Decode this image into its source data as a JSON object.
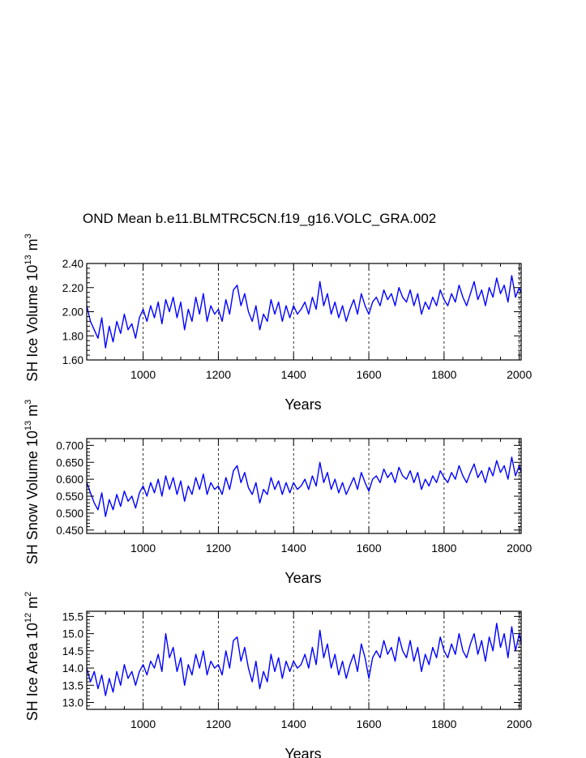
{
  "title": "OND Mean b.e11.BLMTRC5CN.f19_g16.VOLC_GRA.002",
  "chart_data": [
    {
      "type": "line",
      "xlabel": "Years",
      "ylabel_main": "SH Ice Volume 10",
      "ylabel_exp": "13",
      "ylabel_unit": "m",
      "ylabel_unit_exp": "3",
      "xlim": [
        850,
        2005
      ],
      "ylim": [
        1.6,
        2.4
      ],
      "xticks": [
        1000,
        1200,
        1400,
        1600,
        1800,
        2000
      ],
      "xtick_labels": [
        "1000",
        "1200",
        "1400",
        "1600",
        "1800",
        "2000"
      ],
      "yticks": [
        1.6,
        1.8,
        2.0,
        2.2,
        2.4
      ],
      "ytick_labels": [
        "1.60",
        "1.80",
        "2.00",
        "2.20",
        "2.40"
      ],
      "vgrid": true,
      "series": [
        {
          "color": "#0000ff",
          "x": [
            850,
            860,
            870,
            880,
            890,
            900,
            910,
            920,
            930,
            940,
            950,
            960,
            970,
            980,
            990,
            1000,
            1010,
            1020,
            1030,
            1040,
            1050,
            1060,
            1070,
            1080,
            1090,
            1100,
            1110,
            1120,
            1130,
            1140,
            1150,
            1160,
            1170,
            1180,
            1190,
            1200,
            1210,
            1220,
            1230,
            1240,
            1250,
            1260,
            1270,
            1280,
            1290,
            1300,
            1310,
            1320,
            1330,
            1340,
            1350,
            1360,
            1370,
            1380,
            1390,
            1400,
            1410,
            1420,
            1430,
            1440,
            1450,
            1460,
            1470,
            1480,
            1490,
            1500,
            1510,
            1520,
            1530,
            1540,
            1550,
            1560,
            1570,
            1580,
            1590,
            1600,
            1610,
            1620,
            1630,
            1640,
            1650,
            1660,
            1670,
            1680,
            1690,
            1700,
            1710,
            1720,
            1730,
            1740,
            1750,
            1760,
            1770,
            1780,
            1790,
            1800,
            1810,
            1820,
            1830,
            1840,
            1850,
            1860,
            1870,
            1880,
            1890,
            1900,
            1910,
            1920,
            1930,
            1940,
            1950,
            1960,
            1970,
            1980,
            1990,
            2000,
            2005
          ],
          "y": [
            2.05,
            1.92,
            1.85,
            1.78,
            1.95,
            1.7,
            1.88,
            1.75,
            1.92,
            1.82,
            1.98,
            1.85,
            1.9,
            1.78,
            1.95,
            2.02,
            1.92,
            2.05,
            1.95,
            2.08,
            1.9,
            2.1,
            2.0,
            2.12,
            1.95,
            2.08,
            1.85,
            2.02,
            1.92,
            2.12,
            1.98,
            2.15,
            1.92,
            2.05,
            1.98,
            2.02,
            1.92,
            2.1,
            1.98,
            2.18,
            2.22,
            2.05,
            2.15,
            2.0,
            1.92,
            2.05,
            1.85,
            1.98,
            1.92,
            2.1,
            1.98,
            2.08,
            1.92,
            2.05,
            1.95,
            2.05,
            1.98,
            2.02,
            2.08,
            1.98,
            2.12,
            2.02,
            2.25,
            2.05,
            2.15,
            1.98,
            2.08,
            1.95,
            2.05,
            1.92,
            2.02,
            2.1,
            1.98,
            2.15,
            2.05,
            1.98,
            2.08,
            2.12,
            2.05,
            2.18,
            2.1,
            2.15,
            2.05,
            2.2,
            2.12,
            2.08,
            2.18,
            2.05,
            2.15,
            1.98,
            2.08,
            2.02,
            2.12,
            2.05,
            2.18,
            2.1,
            2.05,
            2.15,
            2.08,
            2.22,
            2.12,
            2.05,
            2.15,
            2.25,
            2.1,
            2.18,
            2.05,
            2.2,
            2.12,
            2.28,
            2.15,
            2.22,
            2.08,
            2.3,
            2.12,
            2.2,
            2.15
          ]
        }
      ]
    },
    {
      "type": "line",
      "xlabel": "Years",
      "ylabel_main": "SH Snow Volume 10",
      "ylabel_exp": "13",
      "ylabel_unit": "m",
      "ylabel_unit_exp": "3",
      "xlim": [
        850,
        2005
      ],
      "ylim": [
        0.44,
        0.72
      ],
      "xticks": [
        1000,
        1200,
        1400,
        1600,
        1800,
        2000
      ],
      "xtick_labels": [
        "1000",
        "1200",
        "1400",
        "1600",
        "1800",
        "2000"
      ],
      "yticks": [
        0.45,
        0.5,
        0.55,
        0.6,
        0.65,
        0.7
      ],
      "ytick_labels": [
        "0.450",
        "0.500",
        "0.550",
        "0.600",
        "0.650",
        "0.700"
      ],
      "vgrid": true,
      "series": [
        {
          "color": "#0000ff",
          "x": [
            850,
            860,
            870,
            880,
            890,
            900,
            910,
            920,
            930,
            940,
            950,
            960,
            970,
            980,
            990,
            1000,
            1010,
            1020,
            1030,
            1040,
            1050,
            1060,
            1070,
            1080,
            1090,
            1100,
            1110,
            1120,
            1130,
            1140,
            1150,
            1160,
            1170,
            1180,
            1190,
            1200,
            1210,
            1220,
            1230,
            1240,
            1250,
            1260,
            1270,
            1280,
            1290,
            1300,
            1310,
            1320,
            1330,
            1340,
            1350,
            1360,
            1370,
            1380,
            1390,
            1400,
            1410,
            1420,
            1430,
            1440,
            1450,
            1460,
            1470,
            1480,
            1490,
            1500,
            1510,
            1520,
            1530,
            1540,
            1550,
            1560,
            1570,
            1580,
            1590,
            1600,
            1610,
            1620,
            1630,
            1640,
            1650,
            1660,
            1670,
            1680,
            1690,
            1700,
            1710,
            1720,
            1730,
            1740,
            1750,
            1760,
            1770,
            1780,
            1790,
            1800,
            1810,
            1820,
            1830,
            1840,
            1850,
            1860,
            1870,
            1880,
            1890,
            1900,
            1910,
            1920,
            1930,
            1940,
            1950,
            1960,
            1970,
            1980,
            1990,
            2000,
            2005
          ],
          "y": [
            0.59,
            0.56,
            0.53,
            0.51,
            0.56,
            0.49,
            0.54,
            0.51,
            0.555,
            0.52,
            0.565,
            0.535,
            0.55,
            0.515,
            0.56,
            0.58,
            0.55,
            0.59,
            0.56,
            0.6,
            0.55,
            0.61,
            0.57,
            0.605,
            0.555,
            0.595,
            0.535,
            0.58,
            0.555,
            0.605,
            0.57,
            0.615,
            0.555,
            0.59,
            0.57,
            0.58,
            0.555,
            0.605,
            0.57,
            0.625,
            0.64,
            0.59,
            0.62,
            0.575,
            0.555,
            0.59,
            0.53,
            0.57,
            0.555,
            0.605,
            0.57,
            0.595,
            0.555,
            0.59,
            0.56,
            0.59,
            0.57,
            0.58,
            0.6,
            0.57,
            0.61,
            0.58,
            0.65,
            0.59,
            0.62,
            0.57,
            0.6,
            0.56,
            0.59,
            0.555,
            0.58,
            0.605,
            0.57,
            0.62,
            0.59,
            0.565,
            0.6,
            0.61,
            0.59,
            0.63,
            0.605,
            0.62,
            0.59,
            0.635,
            0.61,
            0.6,
            0.625,
            0.59,
            0.62,
            0.57,
            0.6,
            0.58,
            0.61,
            0.59,
            0.625,
            0.605,
            0.59,
            0.62,
            0.6,
            0.64,
            0.61,
            0.59,
            0.62,
            0.645,
            0.605,
            0.625,
            0.59,
            0.635,
            0.61,
            0.655,
            0.62,
            0.64,
            0.6,
            0.665,
            0.61,
            0.64,
            0.62
          ]
        }
      ]
    },
    {
      "type": "line",
      "xlabel": "Years",
      "ylabel_main": "SH Ice Area 10",
      "ylabel_exp": "12",
      "ylabel_unit": "m",
      "ylabel_unit_exp": "2",
      "xlim": [
        850,
        2005
      ],
      "ylim": [
        12.8,
        15.65
      ],
      "xticks": [
        1000,
        1200,
        1400,
        1600,
        1800,
        2000
      ],
      "xtick_labels": [
        "1000",
        "1200",
        "1400",
        "1600",
        "1800",
        "2000"
      ],
      "yticks": [
        13.0,
        13.5,
        14.0,
        14.5,
        15.0,
        15.5
      ],
      "ytick_labels": [
        "13.0",
        "13.5",
        "14.0",
        "14.5",
        "15.0",
        "15.5"
      ],
      "vgrid": true,
      "series": [
        {
          "color": "#0000ff",
          "x": [
            850,
            860,
            870,
            880,
            890,
            900,
            910,
            920,
            930,
            940,
            950,
            960,
            970,
            980,
            990,
            1000,
            1010,
            1020,
            1030,
            1040,
            1050,
            1060,
            1070,
            1080,
            1090,
            1100,
            1110,
            1120,
            1130,
            1140,
            1150,
            1160,
            1170,
            1180,
            1190,
            1200,
            1210,
            1220,
            1230,
            1240,
            1250,
            1260,
            1270,
            1280,
            1290,
            1300,
            1310,
            1320,
            1330,
            1340,
            1350,
            1360,
            1370,
            1380,
            1390,
            1400,
            1410,
            1420,
            1430,
            1440,
            1450,
            1460,
            1470,
            1480,
            1490,
            1500,
            1510,
            1520,
            1530,
            1540,
            1550,
            1560,
            1570,
            1580,
            1590,
            1600,
            1610,
            1620,
            1630,
            1640,
            1650,
            1660,
            1670,
            1680,
            1690,
            1700,
            1710,
            1720,
            1730,
            1740,
            1750,
            1760,
            1770,
            1780,
            1790,
            1800,
            1810,
            1820,
            1830,
            1840,
            1850,
            1860,
            1870,
            1880,
            1890,
            1900,
            1910,
            1920,
            1930,
            1940,
            1950,
            1960,
            1970,
            1980,
            1990,
            2000,
            2005
          ],
          "y": [
            14.0,
            13.6,
            13.9,
            13.4,
            13.8,
            13.2,
            13.7,
            13.3,
            13.9,
            13.5,
            14.1,
            13.7,
            13.9,
            13.5,
            13.9,
            14.1,
            13.8,
            14.2,
            14.0,
            14.4,
            13.9,
            15.0,
            14.3,
            14.6,
            13.9,
            14.3,
            13.5,
            14.1,
            13.8,
            14.4,
            14.0,
            14.5,
            13.8,
            14.2,
            14.0,
            14.1,
            13.8,
            14.5,
            14.0,
            14.8,
            14.9,
            14.2,
            14.6,
            14.0,
            13.6,
            14.2,
            13.4,
            13.9,
            13.6,
            14.4,
            13.9,
            14.3,
            13.7,
            14.2,
            13.9,
            14.2,
            14.0,
            14.1,
            14.4,
            14.0,
            14.6,
            14.1,
            15.1,
            14.3,
            14.7,
            14.0,
            14.4,
            13.8,
            14.2,
            13.7,
            14.1,
            14.4,
            13.9,
            14.7,
            14.3,
            13.7,
            14.3,
            14.5,
            14.3,
            14.8,
            14.4,
            14.6,
            14.2,
            14.9,
            14.5,
            14.3,
            14.8,
            14.2,
            14.6,
            13.9,
            14.4,
            14.1,
            14.6,
            14.3,
            14.9,
            14.5,
            14.3,
            14.7,
            14.4,
            15.0,
            14.5,
            14.3,
            14.7,
            15.0,
            14.4,
            14.8,
            14.2,
            14.9,
            14.5,
            15.3,
            14.6,
            15.0,
            14.3,
            15.2,
            14.5,
            15.0,
            14.7
          ]
        }
      ]
    }
  ]
}
